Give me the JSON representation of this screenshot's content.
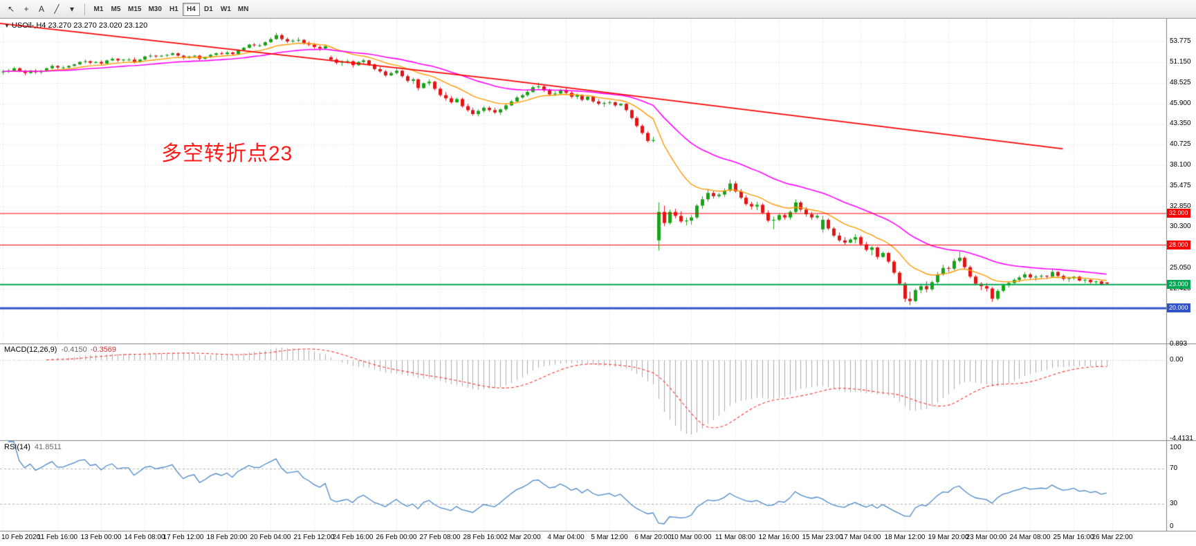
{
  "toolbar": {
    "tool_icons": [
      {
        "name": "cursor-icon",
        "glyph": "↖"
      },
      {
        "name": "crosshair-icon",
        "glyph": "+"
      },
      {
        "name": "text-tool-icon",
        "glyph": "A"
      },
      {
        "name": "trendline-tool-icon",
        "glyph": "╱"
      },
      {
        "name": "chevron-down-icon",
        "glyph": "▾"
      }
    ],
    "timeframes": [
      "M1",
      "M5",
      "M15",
      "M30",
      "H1",
      "H4",
      "D1",
      "W1",
      "MN"
    ],
    "active_timeframe": "H4"
  },
  "chart_header": {
    "collapse_icon": "▼",
    "symbol": "USOil-,H4",
    "ohlc": "23.270 23.270 23.020 23.120"
  },
  "annotation": {
    "text": "多空转折点23",
    "color": "#ff1a1a"
  },
  "colors": {
    "background": "#ffffff",
    "grid": "#d9d9d9",
    "candle_up": "#18a318",
    "candle_down": "#e01616",
    "ma_fast": "#ff9900",
    "ma_slow": "#ff00ff",
    "trendline": "#ff0000",
    "axis_text": "#000000",
    "panel_border": "#808080"
  },
  "chart_data": {
    "type": "candlestick",
    "symbol": "USOil-",
    "timeframe": "H4",
    "ohlc_display": {
      "open": "23.270",
      "high": "23.270",
      "low": "23.020",
      "close": "23.120"
    },
    "price_ticks": [
      53.775,
      51.15,
      48.525,
      45.9,
      43.35,
      40.725,
      38.1,
      35.475,
      32.85,
      30.3,
      25.05,
      22.425
    ],
    "time_labels": [
      {
        "text": "10 Feb 2020",
        "bar": 0
      },
      {
        "text": "11 Feb 16:00",
        "bar": 10
      },
      {
        "text": "13 Feb 00:00",
        "bar": 18
      },
      {
        "text": "14 Feb 08:00",
        "bar": 26
      },
      {
        "text": "17 Feb 12:00",
        "bar": 33
      },
      {
        "text": "18 Feb 20:00",
        "bar": 41
      },
      {
        "text": "20 Feb 04:00",
        "bar": 49
      },
      {
        "text": "21 Feb 12:00",
        "bar": 57
      },
      {
        "text": "24 Feb 16:00",
        "bar": 64
      },
      {
        "text": "26 Feb 00:00",
        "bar": 72
      },
      {
        "text": "27 Feb 08:00",
        "bar": 80
      },
      {
        "text": "28 Feb 16:00",
        "bar": 88
      },
      {
        "text": "2 Mar 20:00",
        "bar": 95
      },
      {
        "text": "4 Mar 04:00",
        "bar": 103
      },
      {
        "text": "5 Mar 12:00",
        "bar": 111
      },
      {
        "text": "6 Mar 20:00",
        "bar": 119
      },
      {
        "text": "10 Mar 00:00",
        "bar": 126
      },
      {
        "text": "11 Mar 08:00",
        "bar": 134
      },
      {
        "text": "12 Mar 16:00",
        "bar": 142
      },
      {
        "text": "15 Mar 23:00",
        "bar": 150
      },
      {
        "text": "17 Mar 04:00",
        "bar": 157
      },
      {
        "text": "18 Mar 12:00",
        "bar": 165
      },
      {
        "text": "19 Mar 20:00",
        "bar": 173
      },
      {
        "text": "23 Mar 00:00",
        "bar": 180
      },
      {
        "text": "24 Mar 08:00",
        "bar": 188
      },
      {
        "text": "25 Mar 16:00",
        "bar": 196
      },
      {
        "text": "26 Mar 22:00",
        "bar": 203
      }
    ],
    "hlines": [
      {
        "price": 32.0,
        "label": "32.000",
        "color": "#ff0000",
        "width": 1
      },
      {
        "price": 28.0,
        "label": "28.000",
        "color": "#ff0000",
        "width": 1
      },
      {
        "price": 23.0,
        "label": "23.000",
        "color": "#00a651",
        "width": 2
      },
      {
        "price": 20.0,
        "label": "20.000",
        "color": "#3054c8",
        "width": 3
      }
    ],
    "trendline": {
      "color": "#ff0000",
      "points_bar_price": [
        [
          -2,
          56.2
        ],
        [
          92,
          48.9
        ],
        [
          194,
          40.2
        ]
      ]
    },
    "moving_averages": [
      {
        "name": "fast-ma",
        "color": "#ff9900",
        "period": 13
      },
      {
        "name": "slow-ma",
        "color": "#ff00ff",
        "period": 34
      }
    ],
    "candles": [
      [
        49.9,
        50.2,
        49.6,
        50.0
      ],
      [
        50.0,
        50.3,
        49.8,
        50.1
      ],
      [
        50.1,
        50.6,
        50.0,
        50.4
      ],
      [
        50.4,
        50.5,
        49.9,
        50.0
      ],
      [
        50.0,
        50.2,
        49.5,
        49.8
      ],
      [
        49.8,
        50.2,
        49.7,
        50.1
      ],
      [
        50.1,
        50.3,
        49.7,
        49.9
      ],
      [
        49.9,
        50.2,
        49.7,
        50.1
      ],
      [
        50.1,
        50.5,
        50.0,
        50.4
      ],
      [
        50.4,
        50.9,
        50.3,
        50.7
      ],
      [
        50.7,
        50.8,
        50.3,
        50.5
      ],
      [
        50.5,
        50.7,
        50.3,
        50.5
      ],
      [
        50.5,
        50.8,
        50.4,
        50.7
      ],
      [
        50.7,
        51.0,
        50.6,
        50.9
      ],
      [
        50.9,
        51.3,
        50.8,
        51.2
      ],
      [
        51.2,
        51.5,
        51.0,
        51.3
      ],
      [
        51.3,
        51.4,
        50.9,
        51.1
      ],
      [
        51.1,
        51.3,
        51.0,
        51.2
      ],
      [
        51.2,
        51.4,
        50.8,
        51.0
      ],
      [
        51.0,
        51.5,
        50.9,
        51.4
      ],
      [
        51.4,
        51.8,
        51.3,
        51.6
      ],
      [
        51.6,
        51.7,
        51.2,
        51.4
      ],
      [
        51.4,
        51.6,
        51.2,
        51.5
      ],
      [
        51.5,
        51.7,
        51.3,
        51.5
      ],
      [
        51.5,
        51.8,
        51.0,
        51.2
      ],
      [
        51.2,
        51.6,
        51.1,
        51.5
      ],
      [
        51.5,
        52.0,
        51.4,
        51.9
      ],
      [
        51.9,
        52.2,
        51.7,
        52.0
      ],
      [
        52.0,
        52.1,
        51.7,
        51.9
      ],
      [
        51.9,
        52.1,
        51.8,
        52.0
      ],
      [
        52.0,
        52.2,
        51.8,
        52.1
      ],
      [
        52.1,
        52.4,
        52.0,
        52.3
      ],
      [
        52.3,
        52.4,
        51.9,
        52.0
      ],
      [
        52.0,
        52.1,
        51.5,
        51.7
      ],
      [
        51.7,
        52.0,
        51.6,
        51.9
      ],
      [
        51.9,
        52.1,
        51.8,
        52.0
      ],
      [
        52.0,
        52.1,
        51.4,
        51.6
      ],
      [
        51.6,
        51.9,
        51.5,
        51.8
      ],
      [
        51.8,
        52.2,
        51.7,
        52.1
      ],
      [
        52.1,
        52.4,
        52.0,
        52.3
      ],
      [
        52.3,
        52.5,
        52.1,
        52.2
      ],
      [
        52.2,
        52.6,
        52.1,
        52.4
      ],
      [
        52.4,
        52.5,
        52.0,
        52.2
      ],
      [
        52.2,
        52.8,
        52.1,
        52.7
      ],
      [
        52.7,
        53.1,
        52.6,
        53.0
      ],
      [
        53.0,
        53.5,
        52.9,
        53.4
      ],
      [
        53.4,
        53.6,
        53.1,
        53.3
      ],
      [
        53.3,
        53.5,
        53.1,
        53.3
      ],
      [
        53.3,
        53.8,
        53.2,
        53.7
      ],
      [
        53.7,
        54.3,
        53.6,
        54.1
      ],
      [
        54.1,
        54.9,
        54.0,
        54.6
      ],
      [
        54.6,
        54.8,
        53.9,
        54.1
      ],
      [
        54.1,
        54.3,
        53.6,
        53.8
      ],
      [
        53.8,
        54.1,
        53.6,
        53.9
      ],
      [
        53.9,
        54.3,
        53.7,
        54.0
      ],
      [
        54.0,
        54.1,
        53.4,
        53.6
      ],
      [
        53.6,
        53.8,
        53.2,
        53.4
      ],
      [
        53.4,
        53.6,
        52.9,
        53.1
      ],
      [
        53.1,
        53.3,
        52.6,
        52.9
      ],
      [
        52.9,
        53.3,
        52.8,
        53.2
      ],
      [
        51.8,
        52.0,
        51.3,
        51.5
      ],
      [
        51.5,
        51.7,
        50.9,
        51.1
      ],
      [
        51.1,
        51.4,
        50.7,
        51.2
      ],
      [
        51.2,
        51.5,
        51.0,
        51.3
      ],
      [
        51.3,
        51.4,
        50.5,
        50.8
      ],
      [
        50.8,
        51.3,
        50.7,
        51.2
      ],
      [
        51.2,
        51.6,
        51.0,
        51.4
      ],
      [
        51.4,
        51.5,
        50.7,
        50.9
      ],
      [
        50.9,
        51.0,
        50.1,
        50.3
      ],
      [
        50.3,
        50.6,
        49.8,
        50.0
      ],
      [
        50.0,
        50.2,
        49.3,
        49.5
      ],
      [
        49.5,
        50.0,
        49.4,
        49.8
      ],
      [
        49.8,
        50.4,
        49.6,
        50.1
      ],
      [
        50.1,
        50.2,
        49.2,
        49.4
      ],
      [
        49.4,
        49.6,
        48.6,
        48.8
      ],
      [
        48.8,
        49.2,
        48.4,
        49.0
      ],
      [
        49.0,
        49.1,
        47.6,
        47.9
      ],
      [
        47.9,
        48.6,
        47.8,
        48.5
      ],
      [
        48.5,
        49.0,
        48.2,
        48.7
      ],
      [
        48.7,
        48.8,
        47.6,
        47.8
      ],
      [
        47.8,
        48.0,
        46.8,
        47.0
      ],
      [
        47.0,
        47.4,
        46.3,
        46.6
      ],
      [
        46.6,
        46.9,
        45.9,
        46.1
      ],
      [
        46.1,
        46.7,
        46.0,
        46.5
      ],
      [
        46.5,
        46.7,
        45.4,
        45.6
      ],
      [
        45.6,
        45.9,
        44.9,
        45.1
      ],
      [
        45.1,
        45.4,
        44.4,
        44.6
      ],
      [
        44.6,
        45.2,
        44.3,
        45.0
      ],
      [
        45.0,
        45.6,
        44.8,
        45.4
      ],
      [
        45.4,
        45.6,
        44.9,
        45.1
      ],
      [
        45.1,
        45.4,
        44.6,
        44.8
      ],
      [
        44.8,
        45.3,
        44.5,
        45.2
      ],
      [
        45.2,
        45.9,
        45.0,
        45.7
      ],
      [
        45.7,
        46.4,
        45.6,
        46.2
      ],
      [
        46.2,
        46.9,
        46.1,
        46.7
      ],
      [
        46.7,
        47.2,
        46.5,
        47.0
      ],
      [
        47.0,
        47.6,
        46.8,
        47.4
      ],
      [
        47.4,
        48.2,
        47.3,
        48.0
      ],
      [
        48.0,
        48.6,
        47.8,
        48.1
      ],
      [
        48.1,
        48.3,
        47.4,
        47.6
      ],
      [
        47.6,
        47.8,
        46.9,
        47.1
      ],
      [
        47.1,
        47.5,
        46.9,
        47.2
      ],
      [
        47.2,
        47.8,
        47.0,
        47.6
      ],
      [
        47.6,
        47.9,
        47.1,
        47.3
      ],
      [
        47.3,
        47.5,
        46.6,
        46.8
      ],
      [
        46.8,
        47.2,
        46.5,
        47.0
      ],
      [
        47.0,
        47.1,
        46.2,
        46.4
      ],
      [
        46.4,
        46.9,
        46.3,
        46.8
      ],
      [
        46.8,
        46.9,
        46.0,
        46.2
      ],
      [
        46.2,
        46.5,
        45.7,
        45.9
      ],
      [
        45.9,
        46.2,
        45.5,
        46.0
      ],
      [
        46.0,
        46.3,
        45.8,
        46.1
      ],
      [
        46.1,
        46.2,
        45.5,
        45.7
      ],
      [
        45.7,
        46.0,
        45.6,
        45.9
      ],
      [
        45.9,
        46.0,
        44.9,
        45.1
      ],
      [
        45.1,
        45.2,
        43.9,
        44.1
      ],
      [
        44.1,
        44.3,
        42.9,
        43.1
      ],
      [
        43.1,
        43.3,
        42.0,
        42.2
      ],
      [
        42.2,
        42.4,
        41.0,
        41.2
      ],
      [
        41.2,
        41.7,
        41.0,
        41.3
      ],
      [
        28.6,
        33.4,
        27.3,
        32.2
      ],
      [
        32.2,
        33.0,
        30.4,
        30.8
      ],
      [
        30.8,
        32.5,
        30.6,
        32.2
      ],
      [
        32.2,
        32.6,
        31.4,
        31.7
      ],
      [
        31.7,
        32.3,
        30.8,
        31.0
      ],
      [
        31.0,
        31.5,
        30.5,
        31.1
      ],
      [
        31.1,
        31.8,
        30.6,
        31.5
      ],
      [
        31.5,
        33.2,
        31.3,
        33.0
      ],
      [
        33.0,
        34.2,
        32.6,
        33.8
      ],
      [
        33.8,
        35.0,
        33.5,
        34.6
      ],
      [
        34.6,
        34.9,
        33.9,
        34.2
      ],
      [
        34.2,
        34.6,
        34.0,
        34.4
      ],
      [
        34.4,
        35.2,
        34.1,
        34.9
      ],
      [
        34.9,
        36.3,
        34.7,
        35.8
      ],
      [
        35.8,
        36.1,
        34.6,
        34.8
      ],
      [
        34.8,
        35.1,
        33.8,
        34.0
      ],
      [
        34.0,
        34.3,
        33.0,
        33.2
      ],
      [
        33.2,
        33.5,
        32.5,
        32.9
      ],
      [
        32.9,
        33.5,
        32.4,
        33.1
      ],
      [
        33.1,
        33.3,
        31.9,
        32.1
      ],
      [
        32.1,
        32.4,
        30.9,
        31.1
      ],
      [
        31.1,
        31.6,
        30.0,
        31.2
      ],
      [
        31.2,
        32.0,
        31.0,
        31.8
      ],
      [
        31.8,
        32.0,
        31.2,
        31.5
      ],
      [
        31.5,
        32.4,
        31.2,
        32.2
      ],
      [
        32.2,
        33.8,
        32.0,
        33.4
      ],
      [
        33.4,
        33.6,
        32.2,
        32.5
      ],
      [
        32.5,
        32.8,
        31.6,
        31.9
      ],
      [
        31.9,
        32.2,
        31.2,
        31.5
      ],
      [
        31.5,
        31.9,
        31.3,
        31.7
      ],
      [
        30.0,
        31.7,
        29.6,
        31.2
      ],
      [
        31.2,
        31.4,
        29.9,
        30.1
      ],
      [
        30.1,
        30.3,
        29.0,
        29.2
      ],
      [
        29.2,
        29.6,
        28.4,
        28.6
      ],
      [
        28.6,
        29.0,
        28.0,
        28.3
      ],
      [
        28.3,
        28.9,
        28.2,
        28.7
      ],
      [
        28.7,
        29.4,
        28.2,
        29.0
      ],
      [
        29.0,
        29.2,
        27.9,
        28.1
      ],
      [
        28.1,
        28.4,
        27.2,
        27.4
      ],
      [
        27.4,
        27.9,
        26.7,
        27.7
      ],
      [
        27.7,
        27.8,
        26.2,
        26.5
      ],
      [
        26.5,
        27.2,
        26.4,
        27.0
      ],
      [
        27.0,
        27.1,
        25.7,
        25.9
      ],
      [
        25.9,
        26.1,
        24.3,
        24.5
      ],
      [
        24.5,
        24.7,
        22.9,
        23.1
      ],
      [
        23.1,
        23.3,
        20.8,
        21.2
      ],
      [
        21.2,
        22.1,
        20.4,
        20.9
      ],
      [
        20.9,
        22.5,
        20.8,
        22.3
      ],
      [
        22.3,
        23.1,
        21.9,
        22.8
      ],
      [
        22.8,
        23.4,
        22.0,
        22.4
      ],
      [
        22.4,
        23.5,
        22.2,
        23.3
      ],
      [
        23.3,
        24.6,
        23.1,
        24.3
      ],
      [
        24.3,
        25.5,
        24.1,
        25.1
      ],
      [
        25.1,
        25.3,
        24.6,
        25.0
      ],
      [
        25.0,
        26.3,
        24.8,
        26.0
      ],
      [
        26.0,
        27.2,
        25.8,
        26.4
      ],
      [
        26.4,
        26.6,
        24.9,
        25.2
      ],
      [
        25.2,
        25.4,
        23.8,
        24.0
      ],
      [
        24.0,
        24.2,
        22.9,
        23.1
      ],
      [
        23.1,
        23.3,
        22.3,
        22.8
      ],
      [
        22.8,
        23.2,
        22.1,
        22.5
      ],
      [
        22.5,
        22.7,
        20.8,
        21.2
      ],
      [
        21.2,
        22.4,
        21.0,
        22.2
      ],
      [
        22.2,
        23.1,
        22.0,
        22.9
      ],
      [
        22.9,
        23.4,
        22.6,
        23.2
      ],
      [
        23.2,
        23.8,
        23.0,
        23.6
      ],
      [
        23.6,
        24.1,
        23.3,
        23.9
      ],
      [
        23.9,
        24.6,
        23.7,
        24.3
      ],
      [
        24.3,
        24.5,
        23.7,
        23.9
      ],
      [
        23.9,
        24.2,
        23.5,
        24.0
      ],
      [
        24.0,
        24.3,
        23.8,
        24.1
      ],
      [
        24.1,
        24.2,
        23.7,
        24.0
      ],
      [
        24.0,
        24.9,
        23.9,
        24.6
      ],
      [
        24.6,
        24.7,
        23.9,
        24.1
      ],
      [
        24.1,
        24.3,
        23.5,
        23.7
      ],
      [
        23.7,
        24.0,
        23.3,
        23.8
      ],
      [
        23.8,
        24.1,
        23.6,
        24.0
      ],
      [
        24.0,
        24.1,
        23.4,
        23.5
      ],
      [
        23.5,
        23.8,
        23.2,
        23.6
      ],
      [
        23.6,
        23.7,
        23.1,
        23.3
      ],
      [
        23.3,
        23.5,
        23.0,
        23.4
      ],
      [
        23.4,
        23.5,
        22.9,
        23.0
      ],
      [
        23.27,
        23.27,
        23.02,
        23.12
      ]
    ],
    "macd": {
      "title": "MACD(12,26,9)",
      "value_main": "-0.4150",
      "value_signal": "-0.3569",
      "fast": 12,
      "slow": 26,
      "signal": 9,
      "range": [
        -4.4131,
        0.893
      ],
      "axis_labels": [
        {
          "v": 0.893,
          "text": "0.893"
        },
        {
          "v": 0,
          "text": "0.00"
        },
        {
          "v": -4.4131,
          "text": "-4.4131"
        }
      ],
      "histogram_color": "#a9a9a9",
      "signal_color": "#ff3333"
    },
    "rsi": {
      "title": "RSI(14)",
      "value_text": "41.8511",
      "period": 14,
      "levels": [
        70,
        30
      ],
      "range": [
        0,
        100
      ],
      "axis_labels": [
        {
          "v": 100,
          "text": "100"
        },
        {
          "v": 70,
          "text": "70"
        },
        {
          "v": 30,
          "text": "30"
        },
        {
          "v": 0,
          "text": "0"
        }
      ],
      "line_color": "#4a86c8"
    }
  }
}
